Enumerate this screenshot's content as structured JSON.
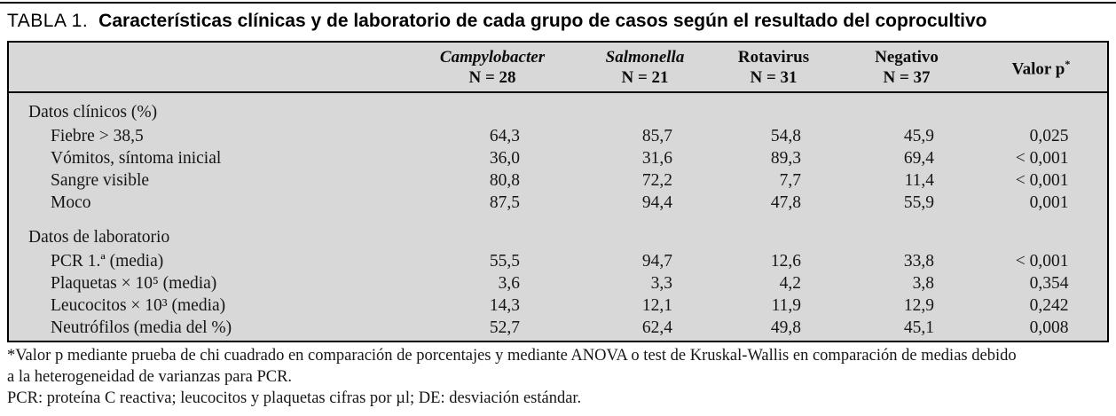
{
  "title": {
    "prefix": "TABLA 1.",
    "text": "Características clínicas y de laboratorio de cada grupo de casos según el resultado del coprocultivo"
  },
  "table": {
    "columns": [
      {
        "name": "Campylobacter",
        "n": "N = 28"
      },
      {
        "name": "Salmonella",
        "n": "N = 21"
      },
      {
        "name": "Rotavirus",
        "n": "N = 31"
      },
      {
        "name": "Negativo",
        "n": "N = 37"
      },
      {
        "name": "Valor p",
        "sup": "*"
      }
    ],
    "sections": [
      {
        "header": "Datos clínicos (%)",
        "rows": [
          {
            "label": "Fiebre > 38,5",
            "values": [
              "64,3",
              "85,7",
              "54,8",
              "45,9",
              "0,025"
            ]
          },
          {
            "label": "Vómitos, síntoma inicial",
            "values": [
              "36,0",
              "31,6",
              "89,3",
              "69,4",
              "< 0,001"
            ]
          },
          {
            "label": "Sangre visible",
            "values": [
              "80,8",
              "72,2",
              "7,7",
              "11,4",
              "< 0,001"
            ]
          },
          {
            "label": "Moco",
            "values": [
              "87,5",
              "94,4",
              "47,8",
              "55,9",
              "0,001"
            ]
          }
        ]
      },
      {
        "header": "Datos de laboratorio",
        "rows": [
          {
            "label": "PCR 1.ª (media)",
            "values": [
              "55,5",
              "94,7",
              "12,6",
              "33,8",
              "< 0,001"
            ]
          },
          {
            "label": "Plaquetas × 10⁵ (media)",
            "values": [
              "3,6",
              "3,3",
              "4,2",
              "3,8",
              "0,354"
            ]
          },
          {
            "label": "Leucocitos × 10³ (media)",
            "values": [
              "14,3",
              "12,1",
              "11,9",
              "12,9",
              "0,242"
            ]
          },
          {
            "label": "Neutrófilos (media del %)",
            "values": [
              "52,7",
              "62,4",
              "49,8",
              "45,1",
              "0,008"
            ]
          }
        ]
      }
    ]
  },
  "footnotes": [
    "*Valor p mediante prueba de chi cuadrado en comparación de porcentajes y mediante ANOVA o test de Kruskal-Wallis en comparación de medias debido",
    "a la heterogeneidad de varianzas para PCR.",
    "PCR: proteína C reactiva; leucocitos y plaquetas cifras por µl; DE: desviación estándar."
  ],
  "colors": {
    "table_background": "#d8d8d8",
    "border": "#000000",
    "text": "#161616"
  }
}
